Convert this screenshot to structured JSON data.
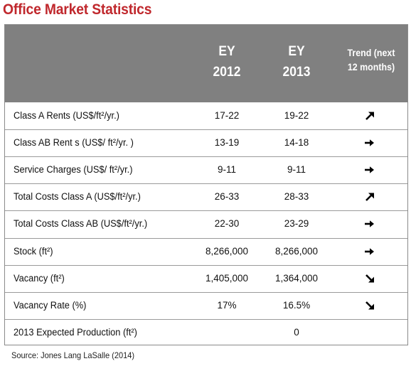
{
  "title": "Office Market Statistics",
  "header": {
    "col1": [
      "EY",
      "2012"
    ],
    "col2": [
      "EY",
      "2013"
    ],
    "trend": [
      "Trend (next",
      "12 months)"
    ]
  },
  "rows": [
    {
      "label": "Class A Rents  (US$/ft²/yr.)",
      "v2012": "17-22",
      "v2013": "19-22",
      "trend": "arrow-up-right-icon"
    },
    {
      "label": "Class AB Rent s (US$/ ft²/yr. )",
      "v2012": "13-19",
      "v2013": "14-18",
      "trend": "arrow-right-icon"
    },
    {
      "label": "Service Charges (US$/ ft²/yr.)",
      "v2012": "9-11",
      "v2013": "9-11",
      "trend": "arrow-right-icon"
    },
    {
      "label": "Total Costs Class A (US$/ft²/yr.)",
      "v2012": "26-33",
      "v2013": "28-33",
      "trend": "arrow-up-right-icon"
    },
    {
      "label": "Total Costs Class AB (US$/ft²/yr.)",
      "v2012": "22-30",
      "v2013": "23-29",
      "trend": "arrow-right-icon"
    },
    {
      "label": "Stock (ft²)",
      "v2012": "8,266,000",
      "v2013": "8,266,000",
      "trend": "arrow-right-icon"
    },
    {
      "label": "Vacancy (ft²)",
      "v2012": "1,405,000",
      "v2013": "1,364,000",
      "trend": "arrow-down-right-icon"
    },
    {
      "label": "Vacancy Rate (%)",
      "v2012": "17%",
      "v2013": "16.5%",
      "trend": "arrow-down-right-icon"
    },
    {
      "label": "2013 Expected Production (ft²)",
      "v2012": "",
      "v2013": "0",
      "trend": ""
    }
  ],
  "source": "Source: Jones Lang LaSalle (2014)",
  "colors": {
    "title": "#c0282d",
    "header_bg": "#808080",
    "header_text": "#ffffff"
  }
}
